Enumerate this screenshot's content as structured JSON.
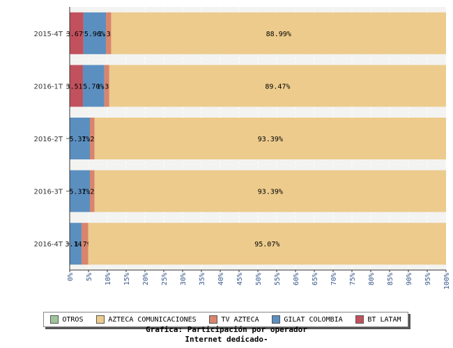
{
  "chart_data": {
    "type": "bar",
    "orientation": "horizontal",
    "stacked": true,
    "categories": [
      "2015-4T",
      "2016-1T",
      "2016-2T",
      "2016-3T",
      "2016-4T"
    ],
    "series": [
      {
        "name": "BT LATAM",
        "color": "#c1515c",
        "values": [
          3.67,
          3.51,
          0,
          0,
          0
        ],
        "labels": [
          "3.67%",
          "3.51%",
          "",
          "",
          ""
        ]
      },
      {
        "name": "GILAT COLOMBIA",
        "color": "#5b8fc0",
        "values": [
          5.96,
          5.7,
          5.37,
          5.37,
          3.14
        ],
        "labels": [
          "5.96%",
          "5.70%",
          "5.37%",
          "5.37%",
          "3.14%"
        ]
      },
      {
        "name": "TV AZTECA",
        "color": "#d9846d",
        "values": [
          1.38,
          1.31,
          1.24,
          1.24,
          1.79
        ],
        "labels": [
          "1.38%",
          "1.31%",
          "1.24%",
          "1.24%",
          "1.79%"
        ]
      },
      {
        "name": "AZTECA COMUNICACIONES",
        "color": "#eccb8c",
        "values": [
          88.99,
          89.47,
          93.39,
          93.39,
          95.07
        ],
        "labels": [
          "88.99%",
          "89.47%",
          "93.39%",
          "93.39%",
          "95.07%"
        ]
      },
      {
        "name": "OTROS",
        "color": "#9fc49a",
        "values": [
          0,
          0,
          0,
          0,
          0
        ],
        "labels": [
          "",
          "",
          "",
          "",
          ""
        ]
      }
    ],
    "xlim": [
      0,
      100
    ],
    "xticks": [
      "0%",
      "5%",
      "10%",
      "15%",
      "20%",
      "25%",
      "30%",
      "35%",
      "40%",
      "45%",
      "50%",
      "55%",
      "60%",
      "65%",
      "70%",
      "75%",
      "80%",
      "85%",
      "90%",
      "95%",
      "100%"
    ],
    "legend_order": [
      "OTROS",
      "AZTECA COMUNICACIONES",
      "TV AZTECA",
      "GILAT COLOMBIA",
      "BT LATAM"
    ],
    "legend_position": "bottom",
    "grid": true
  },
  "caption": {
    "line1": "Grafica: Participación por operador",
    "line2": "Internet dedicado-"
  }
}
